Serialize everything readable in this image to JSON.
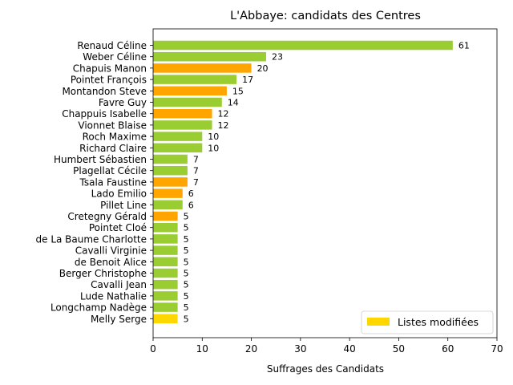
{
  "chart_data": {
    "type": "bar",
    "orientation": "horizontal",
    "title": "L'Abbaye: candidats des Centres",
    "xlabel": "Suffrages des Candidats",
    "ylabel": "",
    "xlim": [
      0,
      70
    ],
    "xticks": [
      "0",
      "10",
      "20",
      "30",
      "40",
      "50",
      "60",
      "70"
    ],
    "grid": false,
    "legend": {
      "placement": "lower-right",
      "entries": [
        {
          "label": "Listes modifiées",
          "color": "#FFD700"
        }
      ]
    },
    "colors": {
      "green": "#9ACD32",
      "orange": "#FFA500",
      "gold": "#FFD700"
    },
    "bars": [
      {
        "name": "Renaud Céline",
        "value": 61,
        "label": "61",
        "color": "#9ACD32"
      },
      {
        "name": "Weber Céline",
        "value": 23,
        "label": "23",
        "color": "#9ACD32"
      },
      {
        "name": "Chapuis Manon",
        "value": 20,
        "label": "20",
        "color": "#FFA500"
      },
      {
        "name": "Pointet François",
        "value": 17,
        "label": "17",
        "color": "#9ACD32"
      },
      {
        "name": "Montandon Steve",
        "value": 15,
        "label": "15",
        "color": "#FFA500"
      },
      {
        "name": "Favre Guy",
        "value": 14,
        "label": "14",
        "color": "#9ACD32"
      },
      {
        "name": "Chappuis Isabelle",
        "value": 12,
        "label": "12",
        "color": "#FFA500"
      },
      {
        "name": "Vionnet Blaise",
        "value": 12,
        "label": "12",
        "color": "#9ACD32"
      },
      {
        "name": "Roch Maxime",
        "value": 10,
        "label": "10",
        "color": "#9ACD32"
      },
      {
        "name": "Richard Claire",
        "value": 10,
        "label": "10",
        "color": "#9ACD32"
      },
      {
        "name": "Humbert Sébastien",
        "value": 7,
        "label": "7",
        "color": "#9ACD32"
      },
      {
        "name": "Plagellat Cécile",
        "value": 7,
        "label": "7",
        "color": "#9ACD32"
      },
      {
        "name": "Tsala Faustine",
        "value": 7,
        "label": "7",
        "color": "#FFA500"
      },
      {
        "name": "Lado Emilio",
        "value": 6,
        "label": "6",
        "color": "#FFA500"
      },
      {
        "name": "Pillet Line",
        "value": 6,
        "label": "6",
        "color": "#9ACD32"
      },
      {
        "name": "Cretegny Gérald",
        "value": 5,
        "label": "5",
        "color": "#FFA500"
      },
      {
        "name": "Pointet Cloé",
        "value": 5,
        "label": "5",
        "color": "#9ACD32"
      },
      {
        "name": "de La Baume Charlotte",
        "value": 5,
        "label": "5",
        "color": "#9ACD32"
      },
      {
        "name": "Cavalli Virginie",
        "value": 5,
        "label": "5",
        "color": "#9ACD32"
      },
      {
        "name": "de Benoit Alice",
        "value": 5,
        "label": "5",
        "color": "#9ACD32"
      },
      {
        "name": "Berger Christophe",
        "value": 5,
        "label": "5",
        "color": "#9ACD32"
      },
      {
        "name": "Cavalli Jean",
        "value": 5,
        "label": "5",
        "color": "#9ACD32"
      },
      {
        "name": "Lude Nathalie",
        "value": 5,
        "label": "5",
        "color": "#9ACD32"
      },
      {
        "name": "Longchamp Nadège",
        "value": 5,
        "label": "5",
        "color": "#9ACD32"
      },
      {
        "name": "Melly Serge",
        "value": 5,
        "label": "5",
        "color": "#FFD700"
      }
    ]
  }
}
